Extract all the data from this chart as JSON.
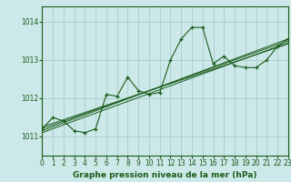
{
  "title": "Graphe pression niveau de la mer (hPa)",
  "bg_color": "#cce8e8",
  "grid_color": "#aacccc",
  "line_color": "#1a5c1a",
  "x_min": 0,
  "x_max": 23,
  "y_min": 1010.5,
  "y_max": 1014.4,
  "yticks": [
    1011,
    1012,
    1013,
    1014
  ],
  "xticks": [
    0,
    1,
    2,
    3,
    4,
    5,
    6,
    7,
    8,
    9,
    10,
    11,
    12,
    13,
    14,
    15,
    16,
    17,
    18,
    19,
    20,
    21,
    22,
    23
  ],
  "main_x": [
    0,
    1,
    2,
    3,
    4,
    5,
    6,
    7,
    8,
    9,
    10,
    11,
    12,
    13,
    14,
    15,
    16,
    17,
    18,
    19,
    20,
    21,
    22,
    23
  ],
  "main_y": [
    1011.2,
    1011.5,
    1011.4,
    1011.15,
    1011.1,
    1011.2,
    1012.1,
    1012.05,
    1012.55,
    1012.2,
    1012.1,
    1012.15,
    1013.0,
    1013.55,
    1013.85,
    1013.85,
    1012.9,
    1013.1,
    1012.85,
    1012.8,
    1012.8,
    1013.0,
    1013.35,
    1013.55
  ],
  "trend1_x": [
    0,
    23
  ],
  "trend1_y": [
    1011.15,
    1013.55
  ],
  "trend2_x": [
    0,
    23
  ],
  "trend2_y": [
    1011.2,
    1013.5
  ],
  "trend3_x": [
    0,
    23
  ],
  "trend3_y": [
    1011.1,
    1013.45
  ],
  "trend4_x": [
    0,
    23
  ],
  "trend4_y": [
    1011.25,
    1013.42
  ]
}
